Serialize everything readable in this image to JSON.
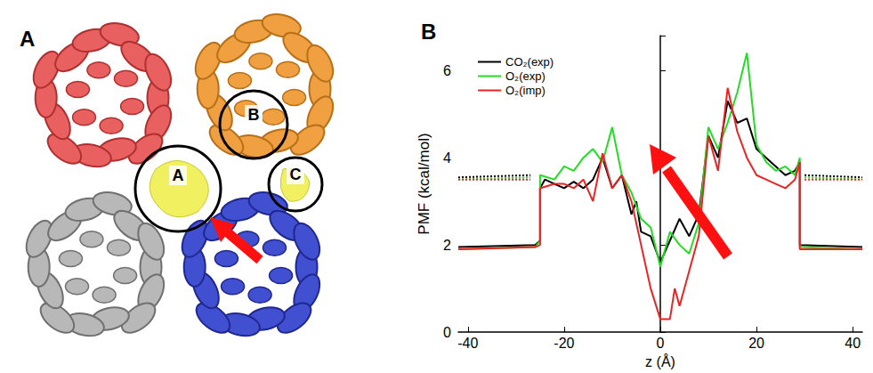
{
  "diagram": {
    "panel": "A",
    "circles": [
      "A",
      "B",
      "C"
    ]
  },
  "chart_data": {
    "type": "line",
    "title": "B",
    "x_label": "z (Å)",
    "y_label": "PMF (kcal/mol)",
    "xlim": [
      -42,
      42
    ],
    "xticks": [
      -40,
      -20,
      0,
      20,
      40
    ],
    "ylim": [
      0,
      6.8
    ],
    "yticks": [
      0,
      2,
      4,
      6
    ],
    "grid": false,
    "legend": "upper left",
    "series": [
      {
        "name": "CO₂(exp)",
        "color": "#000000",
        "line_style": "solid",
        "x": [
          -42,
          -26,
          -25,
          -25,
          -24,
          -22,
          -20,
          -18,
          -16,
          -14,
          -12,
          -10,
          -8,
          -6,
          -5,
          -4,
          -2,
          0,
          2,
          4,
          6,
          8,
          10,
          12,
          14,
          16,
          18,
          20,
          22,
          24,
          26,
          28,
          29,
          29,
          42
        ],
        "values": [
          1.95,
          2.0,
          2.1,
          3.3,
          3.5,
          3.4,
          3.3,
          3.45,
          3.3,
          3.5,
          4.0,
          3.3,
          3.6,
          2.7,
          3.0,
          2.3,
          2.2,
          1.6,
          2.1,
          2.6,
          2.2,
          2.7,
          4.5,
          4.0,
          5.3,
          4.8,
          4.9,
          4.2,
          4.0,
          3.8,
          3.6,
          3.7,
          3.9,
          2.0,
          1.95
        ]
      },
      {
        "name": "O₂(exp)",
        "color": "#22dd22",
        "line_style": "solid",
        "x": [
          -42,
          -26,
          -25,
          -25,
          -22,
          -20,
          -18,
          -16,
          -14,
          -12,
          -10,
          -8,
          -6,
          -4,
          -2,
          0,
          2,
          4,
          6,
          8,
          10,
          12,
          14,
          16,
          18,
          20,
          22,
          24,
          26,
          28,
          29,
          29,
          42
        ],
        "values": [
          1.9,
          1.95,
          2.1,
          3.6,
          3.5,
          3.8,
          3.7,
          4.0,
          4.2,
          3.9,
          4.7,
          3.6,
          3.2,
          2.6,
          2.4,
          1.5,
          2.3,
          2.0,
          1.8,
          2.5,
          4.7,
          4.2,
          4.8,
          5.5,
          6.4,
          4.3,
          3.9,
          3.7,
          3.8,
          3.6,
          4.0,
          1.95,
          1.9
        ]
      },
      {
        "name": "O₂(imp)",
        "color": "#ee2222",
        "line_style": "solid",
        "x": [
          -42,
          -26,
          -25,
          -25,
          -22,
          -20,
          -18,
          -16,
          -14,
          -12,
          -10,
          -8,
          -6,
          -4,
          -2,
          0,
          2,
          3,
          4,
          6,
          8,
          10,
          12,
          14,
          16,
          18,
          20,
          22,
          24,
          26,
          28,
          29,
          29,
          42
        ],
        "values": [
          1.9,
          1.95,
          2.0,
          3.3,
          3.4,
          3.4,
          3.3,
          3.5,
          3.0,
          4.1,
          3.3,
          3.6,
          3.0,
          2.0,
          1.0,
          0.3,
          0.3,
          1.0,
          0.6,
          1.4,
          2.2,
          4.5,
          3.7,
          5.6,
          4.6,
          4.0,
          3.6,
          3.5,
          3.4,
          3.3,
          3.5,
          3.9,
          1.9,
          1.9
        ]
      },
      {
        "color": "#000000",
        "line_style": "dotted",
        "x": [
          -42,
          -27,
          null,
          30,
          42
        ],
        "values": [
          3.55,
          3.6,
          null,
          3.6,
          3.55
        ]
      },
      {
        "color": "#22dd22",
        "line_style": "dotted",
        "x": [
          -42,
          -27,
          null,
          30,
          42
        ],
        "values": [
          3.5,
          3.55,
          null,
          3.55,
          3.5
        ]
      },
      {
        "color": "#ee2222",
        "line_style": "dotted",
        "x": [
          -42,
          -27,
          null,
          30,
          42
        ],
        "values": [
          3.5,
          3.5,
          null,
          3.5,
          3.5
        ]
      }
    ]
  }
}
